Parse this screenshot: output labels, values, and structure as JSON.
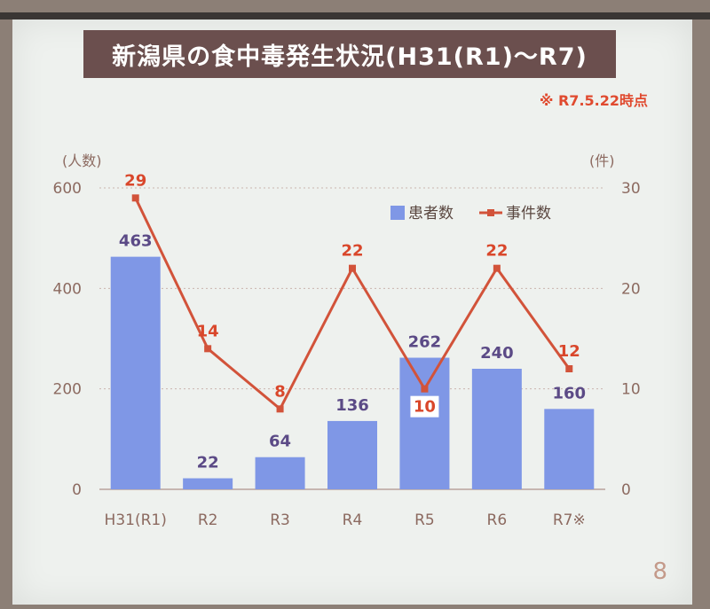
{
  "title": "新潟県の食中毒発生状況(H31(R1)～R7)",
  "note": "※ R7.5.22時点",
  "page_number": "8",
  "colors": {
    "bar": "#7f97e6",
    "line": "#d2533a",
    "bar_label": "#5b4a86",
    "line_label": "#d9472b",
    "axis_text": "#8c6a60",
    "grid": "#c9b5ae"
  },
  "chart_data": {
    "type": "bar",
    "title": "",
    "categories": [
      "H31(R1)",
      "R2",
      "R3",
      "R4",
      "R5",
      "R6",
      "R7※"
    ],
    "series": [
      {
        "name": "患者数",
        "type": "bar",
        "axis": "left",
        "values": [
          463,
          22,
          64,
          136,
          262,
          240,
          160
        ]
      },
      {
        "name": "事件数",
        "type": "line",
        "axis": "right",
        "values": [
          29,
          14,
          8,
          22,
          10,
          22,
          12
        ]
      }
    ],
    "ylabel": "(人数)",
    "y2label": "(件)",
    "ylim": [
      0,
      600
    ],
    "y2lim": [
      0,
      30
    ],
    "yticks": [
      0,
      200,
      400,
      600
    ],
    "y2ticks": [
      0,
      10,
      20,
      30
    ],
    "grid": true,
    "legend_position": "top-right"
  }
}
